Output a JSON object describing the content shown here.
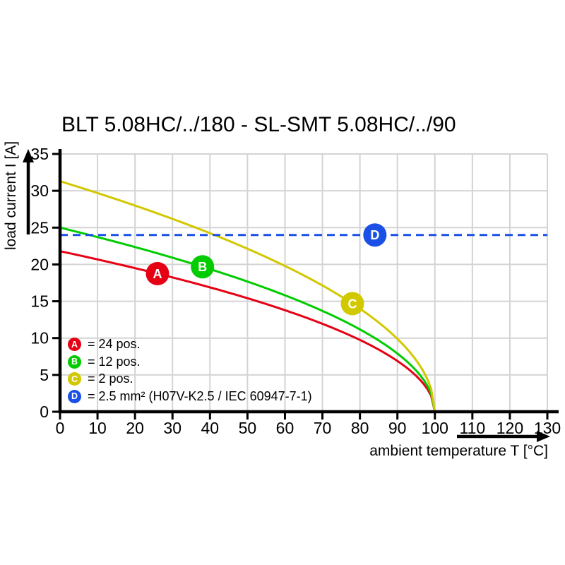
{
  "chart_data": {
    "type": "line",
    "title": "BLT 5.08HC/../180 - SL-SMT 5.08HC/../90",
    "xlabel": "ambient temperature T [°C]",
    "ylabel": "load current I [A]",
    "xlim": [
      0,
      130
    ],
    "ylim": [
      0,
      35
    ],
    "x_ticks": [
      0,
      10,
      20,
      30,
      40,
      50,
      60,
      70,
      80,
      90,
      100,
      110,
      120,
      130
    ],
    "y_ticks": [
      0,
      5,
      10,
      15,
      20,
      25,
      30,
      35
    ],
    "grid": true,
    "grid_color": "#d4d4d4",
    "legend_position": "inside bottom-left",
    "series": [
      {
        "letter": "A",
        "name": "24 pos.",
        "legend_text": "= 24 pos.",
        "color": "#e60014",
        "line_style": "solid",
        "x": [
          0,
          10,
          20,
          30,
          40,
          50,
          60,
          70,
          80,
          90,
          100
        ],
        "values": [
          21.8,
          20.7,
          19.5,
          18.2,
          16.9,
          15.4,
          13.8,
          11.9,
          9.7,
          6.9,
          0
        ],
        "model": {
          "type": "sqrt",
          "i0": 21.8,
          "t_zero": 100
        },
        "marker": {
          "letter": "A",
          "t": 26,
          "i": 18.7
        }
      },
      {
        "letter": "B",
        "name": "12 pos.",
        "legend_text": "= 12 pos.",
        "color": "#00cc00",
        "line_style": "solid",
        "x": [
          0,
          10,
          20,
          30,
          40,
          50,
          60,
          70,
          80,
          90,
          100
        ],
        "values": [
          25,
          23.7,
          22.4,
          20.9,
          19.4,
          17.7,
          15.8,
          13.7,
          11.2,
          7.9,
          0
        ],
        "model": {
          "type": "sqrt",
          "i0": 25,
          "t_zero": 100
        },
        "marker": {
          "letter": "B",
          "t": 38,
          "i": 19.7
        }
      },
      {
        "letter": "C",
        "name": "2 pos.",
        "legend_text": "= 2 pos.",
        "color": "#d2c800",
        "line_style": "solid",
        "x": [
          0,
          10,
          20,
          30,
          40,
          50,
          60,
          70,
          80,
          90,
          100
        ],
        "values": [
          31.3,
          29.7,
          28,
          26.2,
          24.2,
          22.1,
          19.8,
          17.1,
          14,
          9.9,
          0
        ],
        "model": {
          "type": "sqrt",
          "i0": 31.3,
          "t_zero": 100
        },
        "marker": {
          "letter": "C",
          "t": 78,
          "i": 14.7
        }
      },
      {
        "letter": "D",
        "name": "2.5 mm² (H07V-K2.5 / IEC 60947-7-1)",
        "legend_text": "= 2.5 mm² (H07V-K2.5 / IEC 60947-7-1)",
        "color": "#1a50e6",
        "line_style": "dashed",
        "constant_value": 24,
        "x_range": [
          0,
          130
        ],
        "marker": {
          "letter": "D",
          "t": 84,
          "i": 24
        }
      }
    ]
  }
}
